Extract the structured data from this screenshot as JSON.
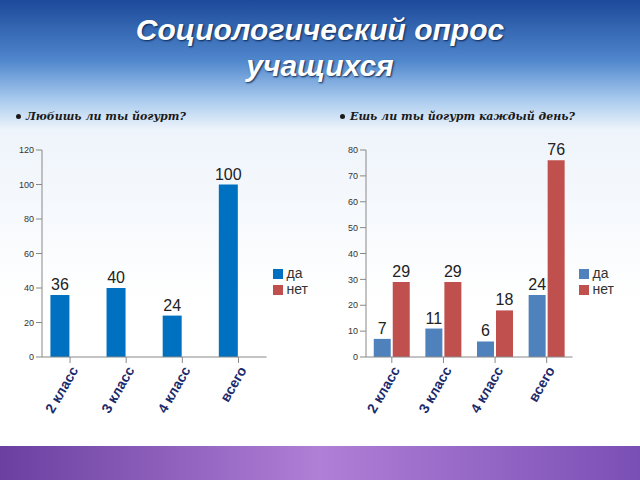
{
  "title": "Социологический опрос учащихся",
  "chart_data": [
    {
      "type": "bar",
      "title": "Любишь ли ты йогурт?",
      "categories": [
        "2 класс",
        "3 класс",
        "4 класс",
        "всего"
      ],
      "series": [
        {
          "name": "да",
          "color": "#0070c0",
          "values": [
            36,
            40,
            24,
            100
          ]
        },
        {
          "name": "нет",
          "color": "#c0504d",
          "values": [
            0,
            0,
            0,
            0
          ]
        }
      ],
      "ylim": [
        0,
        120
      ],
      "yticks": [
        0,
        20,
        40,
        60,
        80,
        100,
        120
      ],
      "grid": false,
      "legend": "right",
      "data_labels": true
    },
    {
      "type": "bar",
      "title": "Ешь ли ты йогурт каждый день?",
      "categories": [
        "2 класс",
        "3 класс",
        "4 класс",
        "всего"
      ],
      "series": [
        {
          "name": "да",
          "color": "#4f81bd",
          "values": [
            7,
            11,
            6,
            24
          ]
        },
        {
          "name": "нет",
          "color": "#c0504d",
          "values": [
            29,
            29,
            18,
            76
          ]
        }
      ],
      "ylim": [
        0,
        80
      ],
      "yticks": [
        0,
        10,
        20,
        30,
        40,
        50,
        60,
        70,
        80
      ],
      "grid": false,
      "legend": "right",
      "data_labels": true
    }
  ]
}
